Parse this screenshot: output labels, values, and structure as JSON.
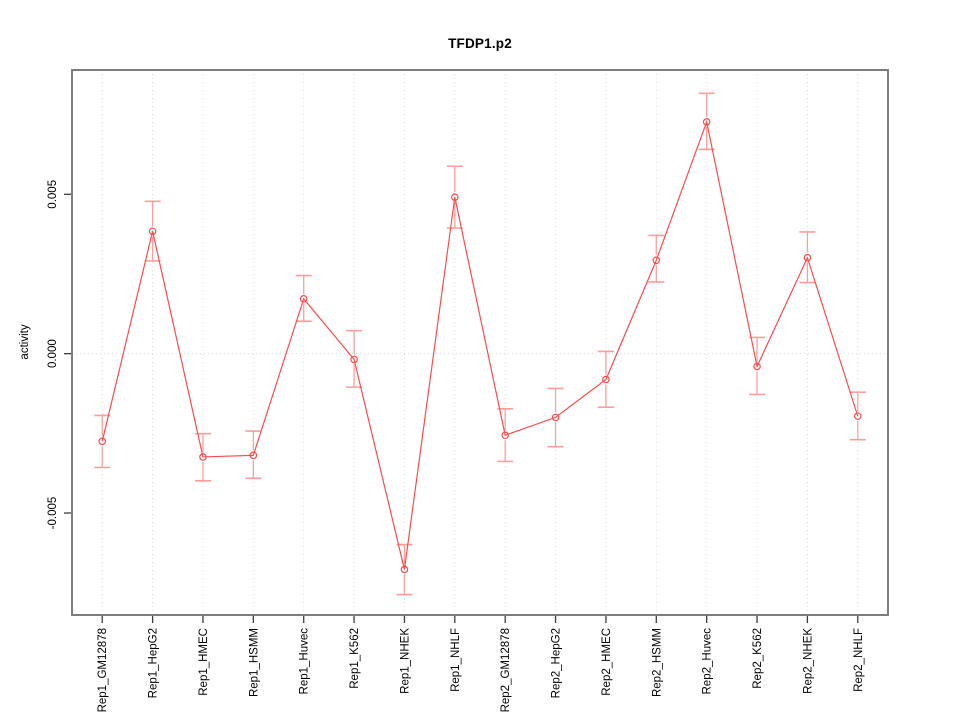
{
  "figure": {
    "kind": "r-statistical-plot",
    "background": "#ffffff"
  },
  "chart_data": {
    "type": "line",
    "title": "TFDP1.p2",
    "xlabel": "",
    "ylabel": "activity",
    "categories": [
      "Rep1_GM12878",
      "Rep1_HepG2",
      "Rep1_HMEC",
      "Rep1_HSMM",
      "Rep1_Huvec",
      "Rep1_K562",
      "Rep1_NHEK",
      "Rep1_NHLF",
      "Rep2_GM12878",
      "Rep2_HepG2",
      "Rep2_HMEC",
      "Rep2_HSMM",
      "Rep2_Huvec",
      "Rep2_K562",
      "Rep2_NHEK",
      "Rep2_NHLF"
    ],
    "series": [
      {
        "name": "TFDP1.p2 activity",
        "values": [
          -0.00275,
          0.00384,
          -0.00324,
          -0.00319,
          0.00172,
          -0.00018,
          -0.00677,
          0.00491,
          -0.00256,
          -0.002,
          -0.00081,
          0.00293,
          0.00727,
          -0.0004,
          0.00301,
          -0.00196
        ],
        "err_hi": [
          -0.00194,
          0.00478,
          -0.00251,
          -0.00243,
          0.00245,
          0.00072,
          -0.00599,
          0.00588,
          -0.00173,
          -0.00109,
          7e-05,
          0.00371,
          0.00817,
          0.00051,
          0.00382,
          -0.00121
        ],
        "err_lo": [
          -0.00357,
          0.00291,
          -0.00399,
          -0.00391,
          0.00102,
          -0.00105,
          -0.00756,
          0.00394,
          -0.00338,
          -0.00292,
          -0.00168,
          0.00225,
          0.00641,
          -0.00128,
          0.00223,
          -0.0027
        ]
      }
    ],
    "yticks": [
      -0.005,
      0,
      0.005
    ],
    "ytick_labels": [
      "-0.005",
      "0.000",
      "0.005"
    ],
    "ylim": [
      -0.0082,
      0.0089
    ],
    "marker": "open-circle",
    "error_bars": true,
    "grid": {
      "vertical_at_categories": true,
      "horizontal_at_zero": true,
      "style": "dotted"
    },
    "legend": null,
    "tick_label_orientation": "vertical"
  },
  "colors": {
    "series_line": "#fb4b4b",
    "error_bar": "#ff9d9d",
    "frame": "#7d7d7d",
    "gridline": "#dcdcdc",
    "tick": "#3c3c3c",
    "text": "#000000",
    "background": "#ffffff"
  }
}
